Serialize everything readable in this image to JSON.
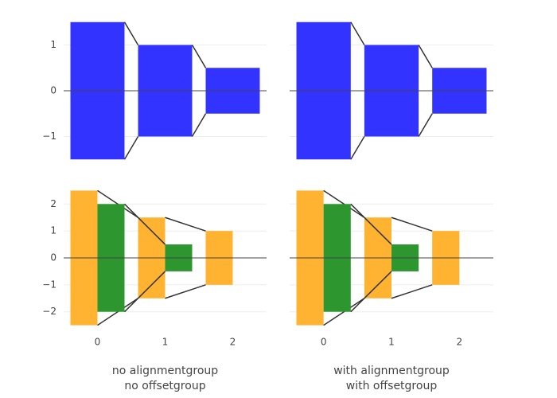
{
  "chart_data": [
    {
      "type": "funnel",
      "xlim": [
        -0.5,
        2.5
      ],
      "ylim": [
        -1.6,
        1.6
      ],
      "yticks": [
        {
          "value": -1,
          "label": "−1"
        },
        0,
        1
      ],
      "ytick_labels": true,
      "grid": true,
      "series": [
        {
          "color": "#3333ff",
          "x": [
            0,
            1,
            2
          ],
          "values": [
            3,
            2,
            1
          ]
        }
      ]
    },
    {
      "type": "funnel",
      "xlim": [
        -0.5,
        2.5
      ],
      "ylim": [
        -1.6,
        1.6
      ],
      "yticks": [
        {
          "value": -1,
          "label": "−1"
        },
        0,
        1
      ],
      "ytick_labels": false,
      "grid": true,
      "series": [
        {
          "color": "#3333ff",
          "x": [
            0,
            1,
            2
          ],
          "values": [
            3,
            2,
            1
          ]
        }
      ]
    },
    {
      "type": "funnel",
      "xlim": [
        -0.5,
        2.5
      ],
      "ylim": [
        -2.6,
        2.6
      ],
      "xticks": [
        0,
        1,
        2
      ],
      "yticks": [
        {
          "value": -2,
          "label": "−2"
        },
        {
          "value": -1,
          "label": "−1"
        },
        0,
        1,
        2
      ],
      "ytick_labels": true,
      "grid": true,
      "xlabel": [
        "no alignmentgroup",
        "no offsetgroup"
      ],
      "series": [
        {
          "color": "#ffb330",
          "x": [
            0,
            1,
            2
          ],
          "values": [
            5,
            3,
            2
          ]
        },
        {
          "color": "#2e962e",
          "x": [
            0,
            1
          ],
          "values": [
            4,
            1
          ]
        }
      ]
    },
    {
      "type": "funnel",
      "xlim": [
        -0.5,
        2.5
      ],
      "ylim": [
        -2.6,
        2.6
      ],
      "xticks": [
        0,
        1,
        2
      ],
      "yticks": [
        {
          "value": -2,
          "label": "−2"
        },
        {
          "value": -1,
          "label": "−1"
        },
        0,
        1,
        2
      ],
      "ytick_labels": false,
      "grid": true,
      "xlabel": [
        "with alignmentgroup",
        "with offsetgroup"
      ],
      "series": [
        {
          "color": "#ffb330",
          "x": [
            0,
            1,
            2
          ],
          "values": [
            5,
            3,
            2
          ]
        },
        {
          "color": "#2e962e",
          "x": [
            0,
            1
          ],
          "values": [
            4,
            1
          ]
        }
      ]
    }
  ]
}
